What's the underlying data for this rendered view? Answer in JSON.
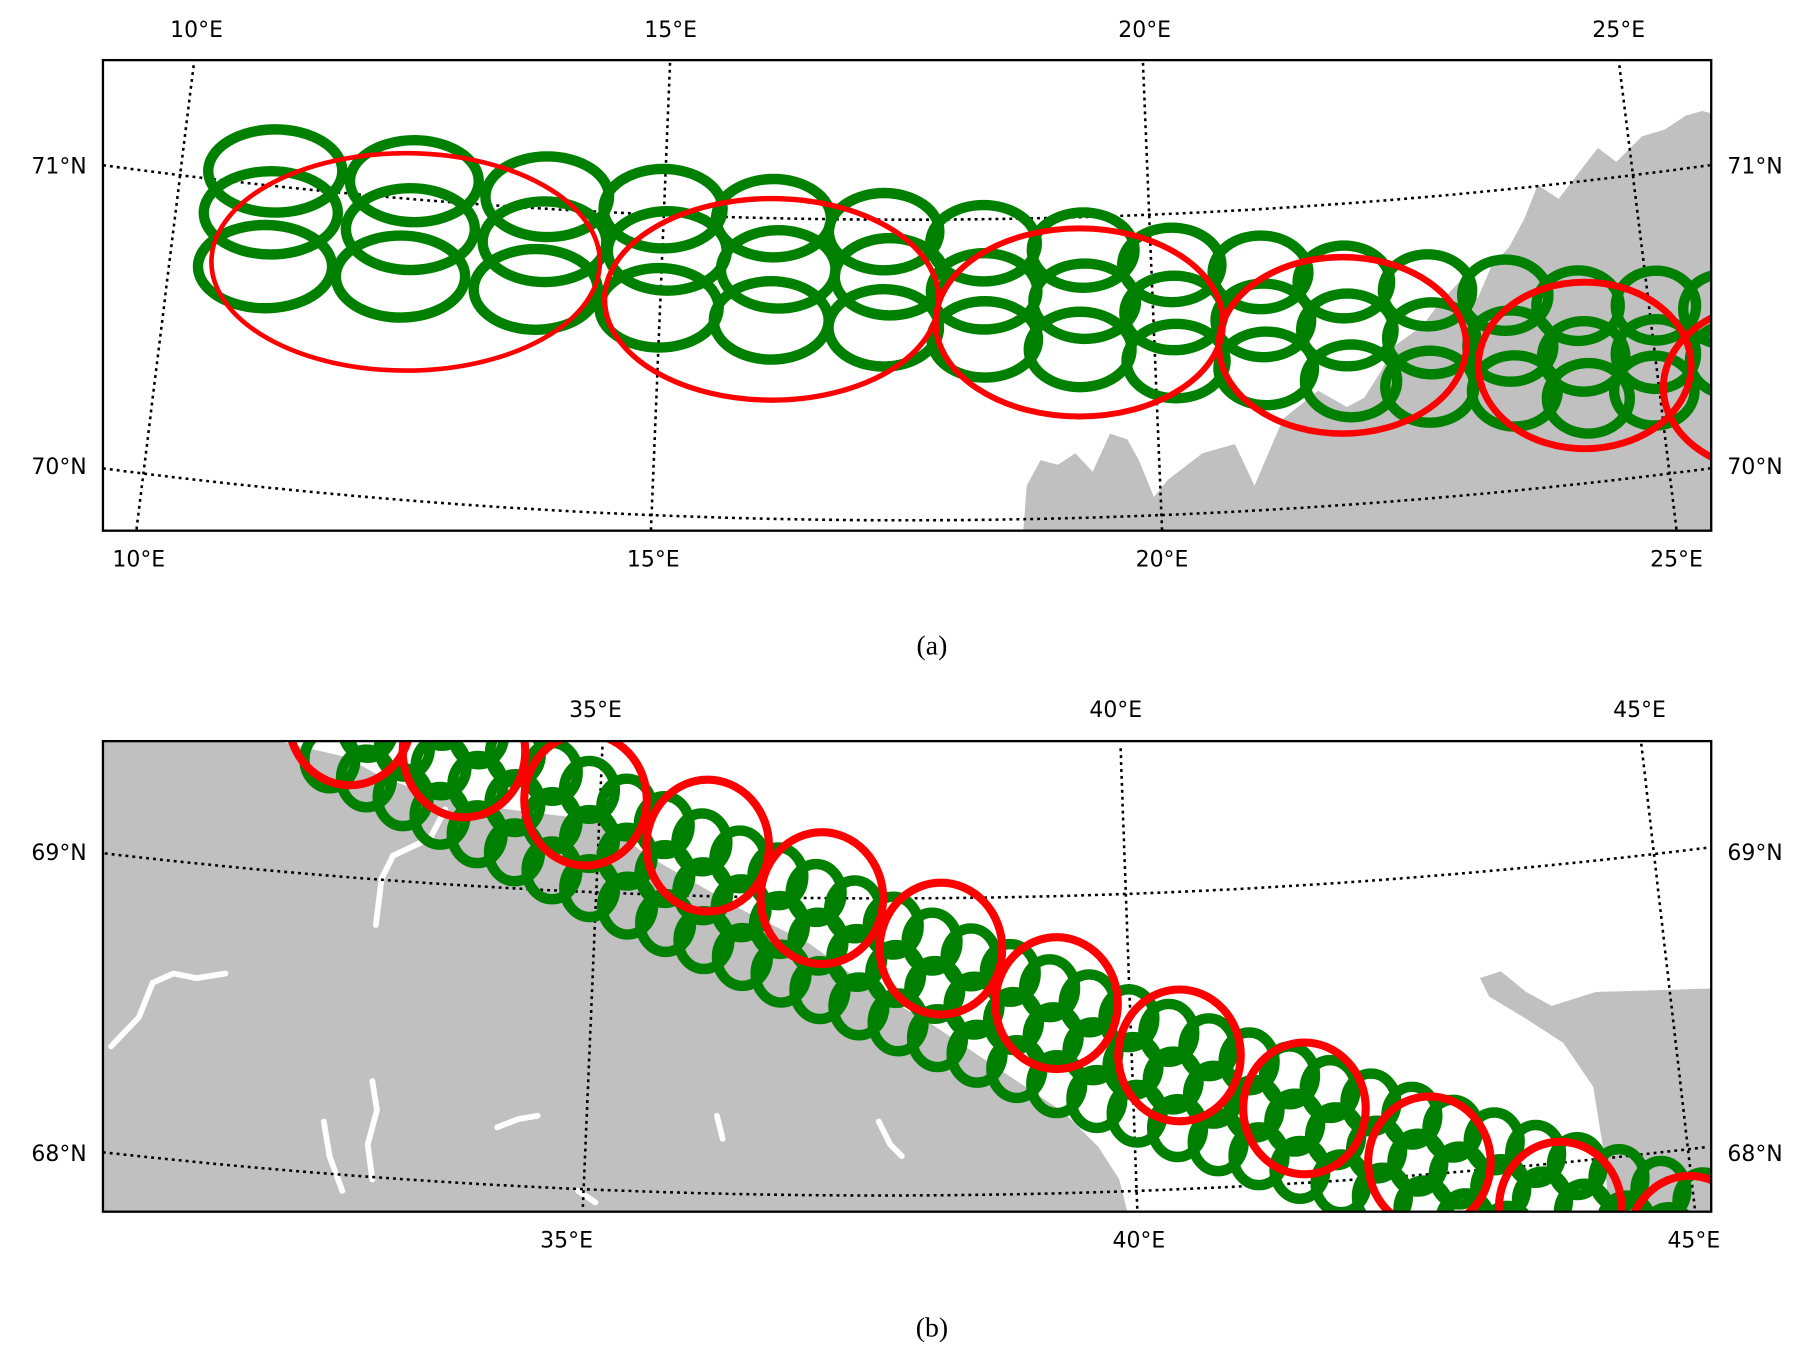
{
  "chart_data": [
    {
      "type": "map",
      "caption": "(a)",
      "meridians": [
        10,
        15,
        20,
        25
      ],
      "parallels": [
        70,
        71
      ],
      "top_ticks": [
        "10°E",
        "15°E",
        "20°E",
        "25°E"
      ],
      "bottom_ticks": [
        "10°E",
        "15°E",
        "20°E",
        "25°E"
      ],
      "left_ticks": [
        "71°N",
        "70°N"
      ],
      "right_ticks": [
        "71°N",
        "70°N"
      ],
      "colors": {
        "large_footprint": "#ff0000",
        "small_footprint": "#008000",
        "land": "#c0c0c0"
      },
      "large_footprints": [
        [
          12.39,
          70.79
        ],
        [
          16.13,
          70.73
        ],
        [
          19.25,
          70.65
        ],
        [
          21.89,
          70.53
        ],
        [
          24.29,
          70.39
        ],
        [
          26.09,
          70.24
        ]
      ],
      "small_footprints": [
        [
          10.97,
          71.05
        ],
        [
          12.41,
          71.06
        ],
        [
          13.79,
          71.04
        ],
        [
          14.99,
          71.02
        ],
        [
          16.13,
          71.0
        ],
        [
          17.27,
          70.96
        ],
        [
          18.29,
          70.92
        ],
        [
          19.31,
          70.89
        ],
        [
          20.21,
          70.83
        ],
        [
          21.11,
          70.79
        ],
        [
          21.95,
          70.74
        ],
        [
          22.79,
          70.69
        ],
        [
          23.57,
          70.65
        ],
        [
          24.29,
          70.59
        ],
        [
          25.07,
          70.56
        ],
        [
          25.73,
          70.52
        ],
        [
          10.97,
          70.91
        ],
        [
          12.41,
          70.9
        ],
        [
          13.79,
          70.89
        ],
        [
          15.05,
          70.88
        ],
        [
          16.19,
          70.83
        ],
        [
          17.33,
          70.81
        ],
        [
          18.29,
          70.76
        ],
        [
          19.31,
          70.72
        ],
        [
          20.21,
          70.67
        ],
        [
          21.11,
          70.63
        ],
        [
          21.95,
          70.58
        ],
        [
          22.79,
          70.53
        ],
        [
          23.57,
          70.48
        ],
        [
          24.29,
          70.42
        ],
        [
          25.01,
          70.4
        ],
        [
          25.73,
          70.35
        ],
        [
          10.97,
          70.73
        ],
        [
          12.35,
          70.74
        ],
        [
          13.73,
          70.73
        ],
        [
          14.99,
          70.69
        ],
        [
          16.13,
          70.66
        ],
        [
          17.27,
          70.64
        ],
        [
          18.29,
          70.6
        ],
        [
          19.25,
          70.56
        ],
        [
          20.21,
          70.51
        ],
        [
          21.11,
          70.47
        ],
        [
          21.95,
          70.41
        ],
        [
          22.73,
          70.37
        ],
        [
          23.57,
          70.33
        ],
        [
          24.29,
          70.28
        ],
        [
          24.95,
          70.28
        ]
      ]
    },
    {
      "type": "map",
      "caption": "(b)",
      "meridians": [
        35,
        40,
        45
      ],
      "parallels": [
        68,
        69
      ],
      "top_ticks": [
        "35°E",
        "40°E",
        "45°E"
      ],
      "bottom_ticks": [
        "35°E",
        "40°E",
        "45°E"
      ],
      "left_ticks": [
        "69°N",
        "68°N"
      ],
      "right_ticks": [
        "69°N",
        "68°N"
      ],
      "colors": {
        "large_footprint": "#ff0000",
        "small_footprint": "#008000",
        "land": "#c0c0c0"
      },
      "large_footprints": [
        [
          32.55,
          69.53
        ],
        [
          33.67,
          69.45
        ],
        [
          34.86,
          69.31
        ],
        [
          36.04,
          69.17
        ],
        [
          37.13,
          69.0
        ],
        [
          38.25,
          68.83
        ],
        [
          39.32,
          68.64
        ],
        [
          40.44,
          68.45
        ],
        [
          41.56,
          68.25
        ],
        [
          42.66,
          68.04
        ],
        [
          43.8,
          67.85
        ],
        [
          44.92,
          67.69
        ]
      ],
      "small_footprint_rows": [
        {
          "start": [
            32.71,
            69.67
          ],
          "end": [
            45.08,
            67.82
          ],
          "count": 35
        },
        {
          "start": [
            32.55,
            69.53
          ],
          "end": [
            44.92,
            67.69
          ],
          "count": 35
        },
        {
          "start": [
            32.39,
            69.39
          ],
          "end": [
            44.76,
            67.56
          ],
          "count": 35
        }
      ]
    }
  ]
}
